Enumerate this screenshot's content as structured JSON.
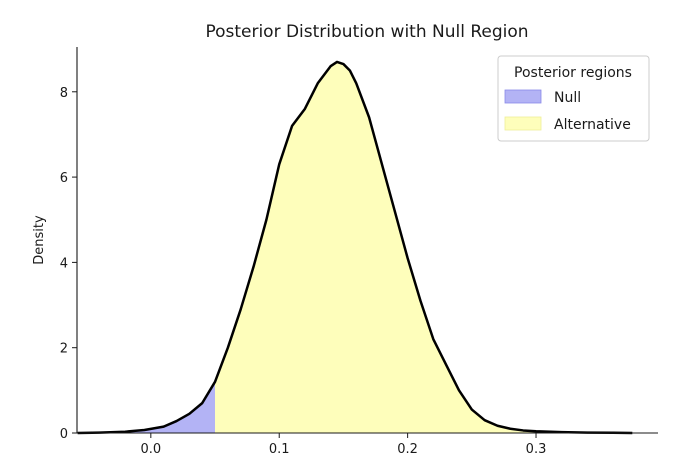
{
  "chart_data": {
    "type": "area",
    "title": "Posterior Distribution with Null Region",
    "xlabel": "",
    "ylabel": "Density",
    "xlim": [
      -0.0575,
      0.395
    ],
    "ylim": [
      0,
      9.05
    ],
    "x_ticks": [
      0.0,
      0.1,
      0.2,
      0.3
    ],
    "x_tick_labels": [
      "0.0",
      "0.1",
      "0.2",
      "0.3"
    ],
    "y_ticks": [
      0,
      2,
      4,
      6,
      8
    ],
    "y_tick_labels": [
      "0",
      "2",
      "4",
      "6",
      "8"
    ],
    "grid": false,
    "null_upper_bound": 0.05,
    "curve": {
      "x": [
        -0.057,
        -0.04,
        -0.02,
        -0.005,
        0.01,
        0.02,
        0.03,
        0.04,
        0.05,
        0.06,
        0.07,
        0.08,
        0.09,
        0.1,
        0.11,
        0.12,
        0.13,
        0.14,
        0.145,
        0.15,
        0.155,
        0.16,
        0.17,
        0.18,
        0.19,
        0.2,
        0.21,
        0.22,
        0.23,
        0.24,
        0.25,
        0.26,
        0.27,
        0.28,
        0.29,
        0.3,
        0.32,
        0.34,
        0.36,
        0.375
      ],
      "y": [
        0.0,
        0.01,
        0.03,
        0.07,
        0.15,
        0.28,
        0.45,
        0.7,
        1.2,
        2.0,
        2.9,
        3.9,
        5.0,
        6.3,
        7.2,
        7.6,
        8.2,
        8.6,
        8.7,
        8.65,
        8.5,
        8.2,
        7.4,
        6.3,
        5.2,
        4.1,
        3.1,
        2.2,
        1.6,
        1.0,
        0.55,
        0.3,
        0.17,
        0.1,
        0.06,
        0.04,
        0.02,
        0.01,
        0.005,
        0.0
      ]
    },
    "regions": [
      {
        "name": "Null",
        "color": "#b3b3f5"
      },
      {
        "name": "Alternative",
        "color": "#fefebb"
      }
    ],
    "line_color": "#000000",
    "legend": {
      "title": "Posterior regions",
      "placement": "top-right"
    }
  }
}
